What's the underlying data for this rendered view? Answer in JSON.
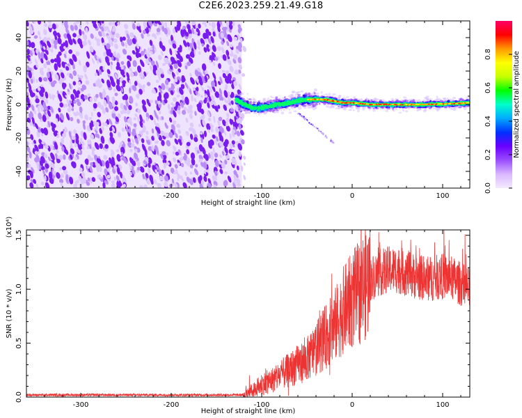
{
  "title": "C2E6.2023.259.21.49.G18",
  "chart_data": [
    {
      "type": "heatmap",
      "xlabel": "Height of straight line (km)",
      "ylabel": "Frequency (Hz)",
      "xlim": [
        -360,
        130
      ],
      "ylim": [
        -50,
        50
      ],
      "xticks": [
        -300,
        -200,
        -100,
        0,
        100
      ],
      "yticks": [
        -40,
        -20,
        0,
        20,
        40
      ],
      "noise_region_x": [
        -360,
        -122
      ],
      "trace": [
        {
          "x": -128,
          "y": 3
        },
        {
          "x": -120,
          "y": 0
        },
        {
          "x": -110,
          "y": -2
        },
        {
          "x": -100,
          "y": -2
        },
        {
          "x": -90,
          "y": -1
        },
        {
          "x": -80,
          "y": 0
        },
        {
          "x": -70,
          "y": 1
        },
        {
          "x": -60,
          "y": 2
        },
        {
          "x": -50,
          "y": 3
        },
        {
          "x": -40,
          "y": 3
        },
        {
          "x": -30,
          "y": 3
        },
        {
          "x": -20,
          "y": 2
        },
        {
          "x": -10,
          "y": 1
        },
        {
          "x": 0,
          "y": 1
        },
        {
          "x": 20,
          "y": 0
        },
        {
          "x": 50,
          "y": 0
        },
        {
          "x": 80,
          "y": 0
        },
        {
          "x": 110,
          "y": 0.5
        },
        {
          "x": 130,
          "y": 1
        }
      ],
      "colorbar": {
        "label": "Normalized spectral amplitude",
        "ticks": [
          "0.0",
          "0.2",
          "0.4",
          "0.6",
          "0.8"
        ],
        "tick_values": [
          0.0,
          0.2,
          0.4,
          0.6,
          0.8
        ],
        "range": [
          0,
          1
        ],
        "colors": [
          "#f4eaff",
          "#d9b8ff",
          "#9a4dff",
          "#6a00ff",
          "#0030ff",
          "#00aaff",
          "#00ffcc",
          "#00ff00",
          "#c8ff00",
          "#ffff00",
          "#ff9900",
          "#ff0000",
          "#ff0066"
        ]
      }
    },
    {
      "type": "line",
      "xlabel": "Height of straight line (km)",
      "ylabel": "SNR (10 * v/v)",
      "y_multiplier": "(x10⁴)",
      "xlim": [
        -360,
        130
      ],
      "ylim": [
        0,
        1.55
      ],
      "xticks": [
        -300,
        -200,
        -100,
        0,
        100
      ],
      "yticks": [
        "0.0",
        "0.5",
        "1.0",
        "1.5"
      ],
      "ytick_values": [
        0.0,
        0.5,
        1.0,
        1.5
      ],
      "color": "#ee3333",
      "series": [
        {
          "values": [
            {
              "x": -360,
              "y": 0.02
            },
            {
              "x": -300,
              "y": 0.02
            },
            {
              "x": -200,
              "y": 0.02
            },
            {
              "x": -120,
              "y": 0.02
            },
            {
              "x": -110,
              "y": 0.05
            },
            {
              "x": -100,
              "y": 0.12
            },
            {
              "x": -90,
              "y": 0.15
            },
            {
              "x": -80,
              "y": 0.2
            },
            {
              "x": -70,
              "y": 0.25
            },
            {
              "x": -60,
              "y": 0.3
            },
            {
              "x": -50,
              "y": 0.35
            },
            {
              "x": -40,
              "y": 0.45
            },
            {
              "x": -30,
              "y": 0.55
            },
            {
              "x": -20,
              "y": 0.65
            },
            {
              "x": -10,
              "y": 0.8
            },
            {
              "x": 0,
              "y": 0.9
            },
            {
              "x": 10,
              "y": 1.0
            },
            {
              "x": 20,
              "y": 1.1
            },
            {
              "x": 30,
              "y": 1.15
            },
            {
              "x": 40,
              "y": 1.18
            },
            {
              "x": 50,
              "y": 1.18
            },
            {
              "x": 60,
              "y": 1.15
            },
            {
              "x": 70,
              "y": 1.12
            },
            {
              "x": 80,
              "y": 1.1
            },
            {
              "x": 90,
              "y": 1.1
            },
            {
              "x": 100,
              "y": 1.12
            },
            {
              "x": 110,
              "y": 1.1
            },
            {
              "x": 120,
              "y": 1.05
            },
            {
              "x": 130,
              "y": 1.0
            }
          ]
        }
      ]
    }
  ]
}
